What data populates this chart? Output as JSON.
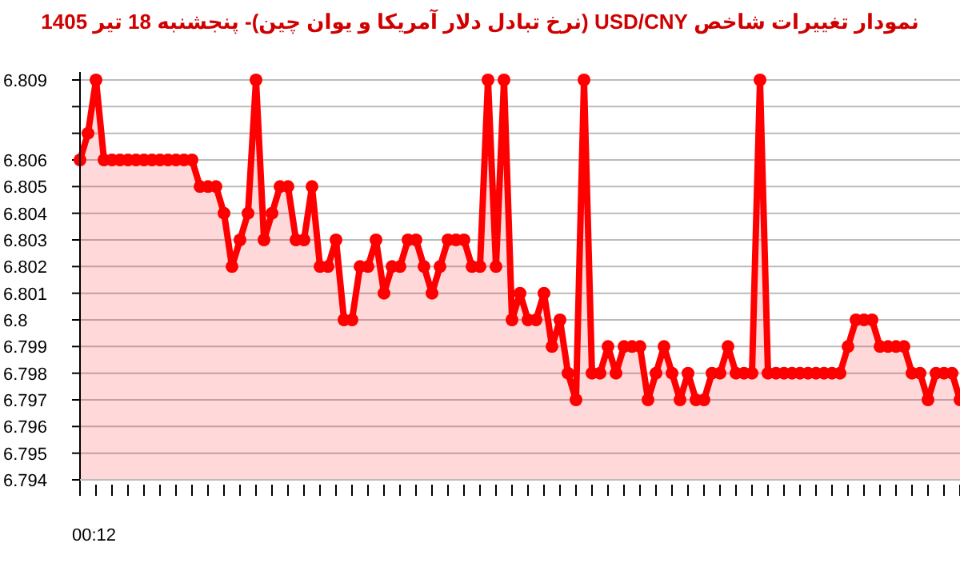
{
  "chart_data": {
    "type": "area",
    "title": "نمودار تغییرات شاخص USD/CNY (نرخ تبادل دلار آمریکا و یوان چین)- پنجشنبه  18 تیر 1405",
    "categories": [
      null,
      null,
      null,
      null,
      null,
      null,
      null,
      null,
      null,
      null,
      null,
      null,
      null,
      null,
      null,
      null,
      null,
      null,
      null,
      null,
      null,
      null,
      null,
      null,
      null,
      null,
      null,
      null,
      null,
      null,
      null,
      null,
      null,
      null,
      null,
      null,
      null,
      null,
      null,
      null,
      null,
      null,
      null,
      null,
      null,
      null,
      null,
      null,
      null,
      null,
      null,
      null,
      null,
      null,
      null,
      null,
      null,
      null,
      null,
      null,
      null,
      null,
      null,
      null,
      null,
      null,
      null,
      null,
      null,
      null,
      null,
      null,
      null,
      null,
      null,
      null,
      null,
      null,
      null,
      null,
      null,
      null,
      null,
      null,
      null,
      null,
      null,
      null,
      null,
      null,
      null,
      null,
      null,
      null,
      null,
      null,
      null,
      null,
      null,
      null,
      null,
      null,
      null,
      null,
      null,
      null,
      null,
      null,
      null,
      null,
      null
    ],
    "series": [
      {
        "color": "#ff0000",
        "values": [
          6.806,
          6.807,
          6.809,
          6.806,
          6.806,
          6.806,
          6.806,
          6.806,
          6.806,
          6.806,
          6.806,
          6.806,
          6.806,
          6.806,
          6.806,
          6.805,
          6.805,
          6.805,
          6.804,
          6.802,
          6.803,
          6.804,
          6.809,
          6.803,
          6.804,
          6.805,
          6.805,
          6.803,
          6.803,
          6.805,
          6.802,
          6.802,
          6.803,
          6.8,
          6.8,
          6.802,
          6.802,
          6.803,
          6.801,
          6.802,
          6.802,
          6.803,
          6.803,
          6.802,
          6.801,
          6.802,
          6.803,
          6.803,
          6.803,
          6.802,
          6.802,
          6.809,
          6.802,
          6.809,
          6.8,
          6.801,
          6.8,
          6.8,
          6.801,
          6.799,
          6.8,
          6.798,
          6.797,
          6.809,
          6.798,
          6.798,
          6.799,
          6.798,
          6.799,
          6.799,
          6.799,
          6.797,
          6.798,
          6.799,
          6.798,
          6.797,
          6.798,
          6.797,
          6.797,
          6.798,
          6.798,
          6.799,
          6.798,
          6.798,
          6.798,
          6.809,
          6.798,
          6.798,
          6.798,
          6.798,
          6.798,
          6.798,
          6.798,
          6.798,
          6.798,
          6.798,
          6.799,
          6.8,
          6.8,
          6.8,
          6.799,
          6.799,
          6.799,
          6.799,
          6.798,
          6.798,
          6.797,
          6.798,
          6.798,
          6.798,
          6.797
        ]
      }
    ],
    "ylim": [
      6.794,
      6.809
    ],
    "yticks": [
      {
        "value": 6.794,
        "label": "6.794"
      },
      {
        "value": 6.795,
        "label": "6.795"
      },
      {
        "value": 6.796,
        "label": "6.796"
      },
      {
        "value": 6.797,
        "label": "6.797"
      },
      {
        "value": 6.798,
        "label": "6.798"
      },
      {
        "value": 6.799,
        "label": "6.799"
      },
      {
        "value": 6.8,
        "label": "6.8"
      },
      {
        "value": 6.801,
        "label": "6.801"
      },
      {
        "value": 6.802,
        "label": "6.802"
      },
      {
        "value": 6.803,
        "label": "6.803"
      },
      {
        "value": 6.804,
        "label": "6.804"
      },
      {
        "value": 6.805,
        "label": "6.805"
      },
      {
        "value": 6.806,
        "label": "6.806"
      },
      {
        "value": 6.807,
        "label": null
      },
      {
        "value": 6.808,
        "label": null
      },
      {
        "value": 6.809,
        "label": "6.809"
      }
    ],
    "grid": "y",
    "marker": "circle",
    "annotations": [
      "00:12"
    ]
  }
}
